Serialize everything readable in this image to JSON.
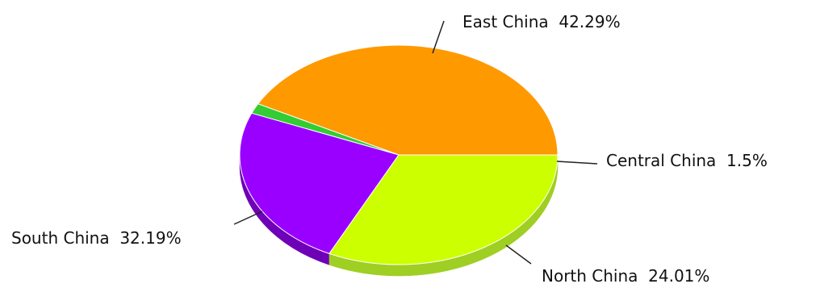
{
  "chart_data": {
    "type": "pie",
    "style": "3d",
    "title": "",
    "slices": [
      {
        "label": "East China",
        "value": 42.29,
        "display": "East China  42.29%",
        "color": "#ff9900",
        "side_color": "#d47f00"
      },
      {
        "label": "Central China",
        "value": 1.5,
        "display": "Central China  1.5%",
        "color": "#33cc33",
        "side_color": "#239623"
      },
      {
        "label": "North China",
        "value": 24.01,
        "display": "North China  24.01%",
        "color": "#9900ff",
        "side_color": "#6e00b8"
      },
      {
        "label": "South China",
        "value": 32.19,
        "display": "South China  32.19%",
        "color": "#ccff00",
        "side_color": "#9fcf22"
      }
    ]
  }
}
